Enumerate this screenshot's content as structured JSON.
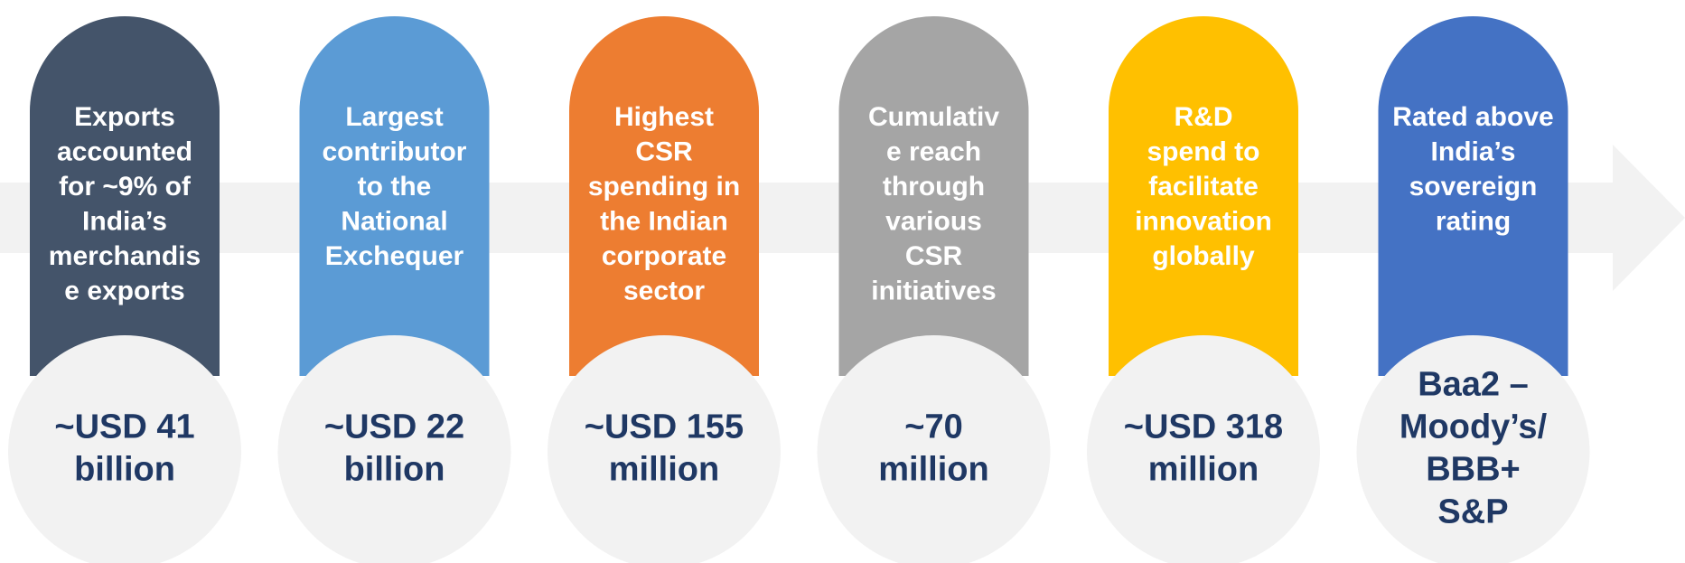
{
  "cards": [
    {
      "color": "#44546a",
      "lines": [
        "Exports",
        "accounted",
        "for ~9% of",
        "India’s",
        "merchandis",
        "e exports"
      ],
      "value": [
        "~USD 41",
        "billion"
      ]
    },
    {
      "color": "#5b9bd5",
      "lines": [
        "Largest",
        "contributor",
        "to the",
        "National",
        "Exchequer"
      ],
      "value": [
        "~USD 22",
        "billion"
      ]
    },
    {
      "color": "#ed7d31",
      "lines": [
        "Highest",
        "CSR",
        "spending in",
        "the Indian",
        "corporate",
        "sector"
      ],
      "value": [
        "~USD 155",
        "million"
      ]
    },
    {
      "color": "#a5a5a5",
      "lines": [
        "Cumulativ",
        "e reach",
        "through",
        "various",
        "CSR",
        "initiatives"
      ],
      "value": [
        "~70",
        "million"
      ]
    },
    {
      "color": "#ffc000",
      "lines": [
        "R&D",
        "spend to",
        "facilitate",
        "innovation",
        "globally"
      ],
      "value": [
        "~USD 318",
        "million"
      ]
    },
    {
      "color": "#4472c4",
      "lines": [
        "Rated above",
        "India’s",
        "sovereign",
        "rating"
      ],
      "value": [
        "Baa2 –",
        "Moody’s/",
        "BBB+",
        "S&P"
      ]
    }
  ]
}
